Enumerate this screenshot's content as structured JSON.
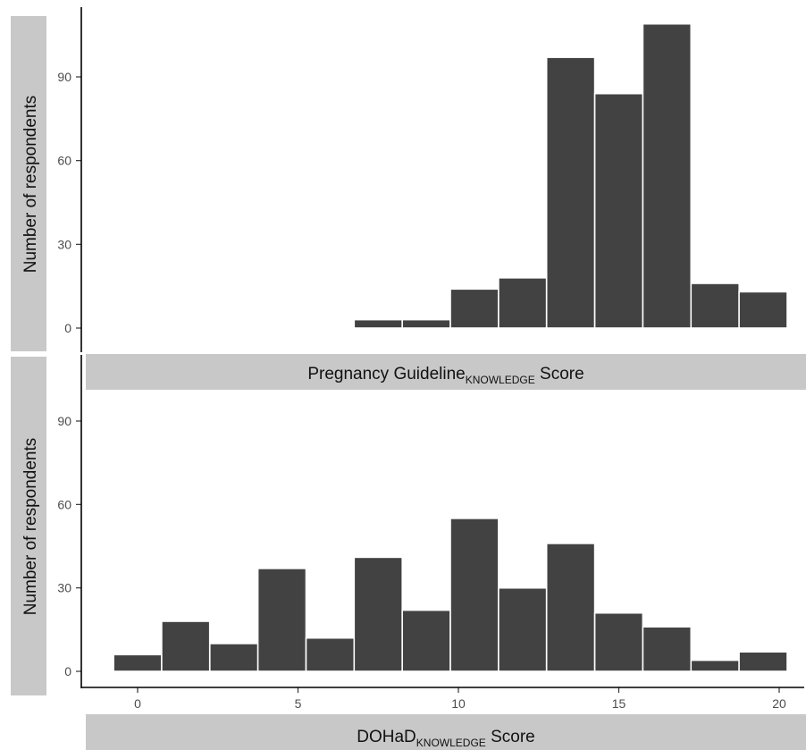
{
  "chart_data": [
    {
      "type": "bar",
      "panel": "top",
      "title": "",
      "ylabel": "Number of respondents",
      "xlabel": "Pregnancy Guideline",
      "xlabel_subscript": "KNOWLEDGE",
      "xlabel_suffix": "Score",
      "ylim": [
        0,
        115
      ],
      "y_ticks": [
        "0",
        "30",
        "60",
        "90"
      ],
      "bins": [
        {
          "x": 7.5,
          "value": 3
        },
        {
          "x": 9.0,
          "value": 3
        },
        {
          "x": 10.5,
          "value": 14
        },
        {
          "x": 12.0,
          "value": 18
        },
        {
          "x": 13.5,
          "value": 97
        },
        {
          "x": 15.0,
          "value": 84
        },
        {
          "x": 16.5,
          "value": 109
        },
        {
          "x": 18.0,
          "value": 16
        },
        {
          "x": 19.5,
          "value": 13
        }
      ],
      "bin_width": 1.5,
      "bar_color": "#424242"
    },
    {
      "type": "bar",
      "panel": "bottom",
      "title": "",
      "ylabel": "Number of respondents",
      "xlabel": "DOHaD",
      "xlabel_subscript": "KNOWLEDGE",
      "xlabel_suffix": "Score",
      "ylim": [
        0,
        115
      ],
      "y_ticks": [
        "0",
        "30",
        "60",
        "90"
      ],
      "x_ticks": [
        "0",
        "5",
        "10",
        "15",
        "20"
      ],
      "bins": [
        {
          "x": 0.0,
          "value": 6
        },
        {
          "x": 1.5,
          "value": 18
        },
        {
          "x": 3.0,
          "value": 10
        },
        {
          "x": 4.5,
          "value": 37
        },
        {
          "x": 6.0,
          "value": 12
        },
        {
          "x": 7.5,
          "value": 41
        },
        {
          "x": 9.0,
          "value": 22
        },
        {
          "x": 10.5,
          "value": 55
        },
        {
          "x": 12.0,
          "value": 30
        },
        {
          "x": 13.5,
          "value": 46
        },
        {
          "x": 15.0,
          "value": 21
        },
        {
          "x": 16.5,
          "value": 16
        },
        {
          "x": 18.0,
          "value": 4
        },
        {
          "x": 19.5,
          "value": 7
        }
      ],
      "bin_width": 1.5,
      "bar_color": "#424242"
    }
  ],
  "colors": {
    "strip_fill": "#c8c8c8",
    "axis": "#000000",
    "tick_text": "#4d4d4d"
  }
}
